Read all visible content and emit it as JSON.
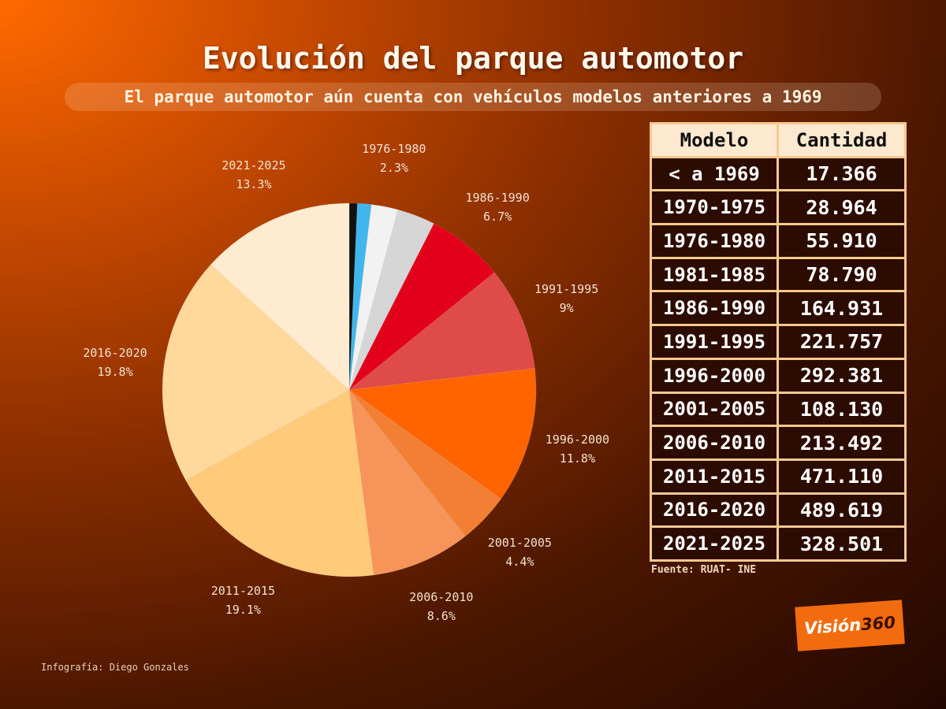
{
  "header": {
    "title": "Evolución del parque automotor",
    "subtitle": "El parque automotor aún cuenta con vehículos modelos anteriores a 1969"
  },
  "chart_data": {
    "type": "pie",
    "title": "Evolución del parque automotor",
    "slices": [
      {
        "label": "< a 1969",
        "pct": 0.7,
        "color": "#111111",
        "show_label": false
      },
      {
        "label": "1970-1975",
        "pct": 1.2,
        "color": "#3fb7ee",
        "show_label": false
      },
      {
        "label": "1976-1980",
        "pct": 2.3,
        "color": "#f2f2f2",
        "show_label": true
      },
      {
        "label": "1981-1985",
        "pct": 3.3,
        "color": "#d6d6d6",
        "show_label": false
      },
      {
        "label": "1986-1990",
        "pct": 6.7,
        "color": "#e3001b",
        "show_label": true
      },
      {
        "label": "1991-1995",
        "pct": 9,
        "color": "#df4b48",
        "show_label": true
      },
      {
        "label": "1996-2000",
        "pct": 11.8,
        "color": "#ff6400",
        "show_label": true
      },
      {
        "label": "2001-2005",
        "pct": 4.4,
        "color": "#f27f33",
        "show_label": true
      },
      {
        "label": "2006-2010",
        "pct": 8.6,
        "color": "#f6945a",
        "show_label": true
      },
      {
        "label": "2011-2015",
        "pct": 19.1,
        "color": "#ffca7a",
        "show_label": true
      },
      {
        "label": "2016-2020",
        "pct": 19.8,
        "color": "#ffd89c",
        "show_label": true
      },
      {
        "label": "2021-2025",
        "pct": 13.3,
        "color": "#ffebd0",
        "show_label": true
      }
    ]
  },
  "table": {
    "headers": [
      "Modelo",
      "Cantidad"
    ],
    "rows": [
      [
        "< a 1969",
        "17.366"
      ],
      [
        "1970-1975",
        "28.964"
      ],
      [
        "1976-1980",
        "55.910"
      ],
      [
        "1981-1985",
        "78.790"
      ],
      [
        "1986-1990",
        "164.931"
      ],
      [
        "1991-1995",
        "221.757"
      ],
      [
        "1996-2000",
        "292.381"
      ],
      [
        "2001-2005",
        "108.130"
      ],
      [
        "2006-2010",
        "213.492"
      ],
      [
        "2011-2015",
        "471.110"
      ],
      [
        "2016-2020",
        "489.619"
      ],
      [
        "2021-2025",
        "328.501"
      ]
    ]
  },
  "source": "Fuente:  RUAT- INE",
  "credit": "Infografía: Diego Gonzales",
  "logo": {
    "text": "Visión",
    "number": "360"
  }
}
